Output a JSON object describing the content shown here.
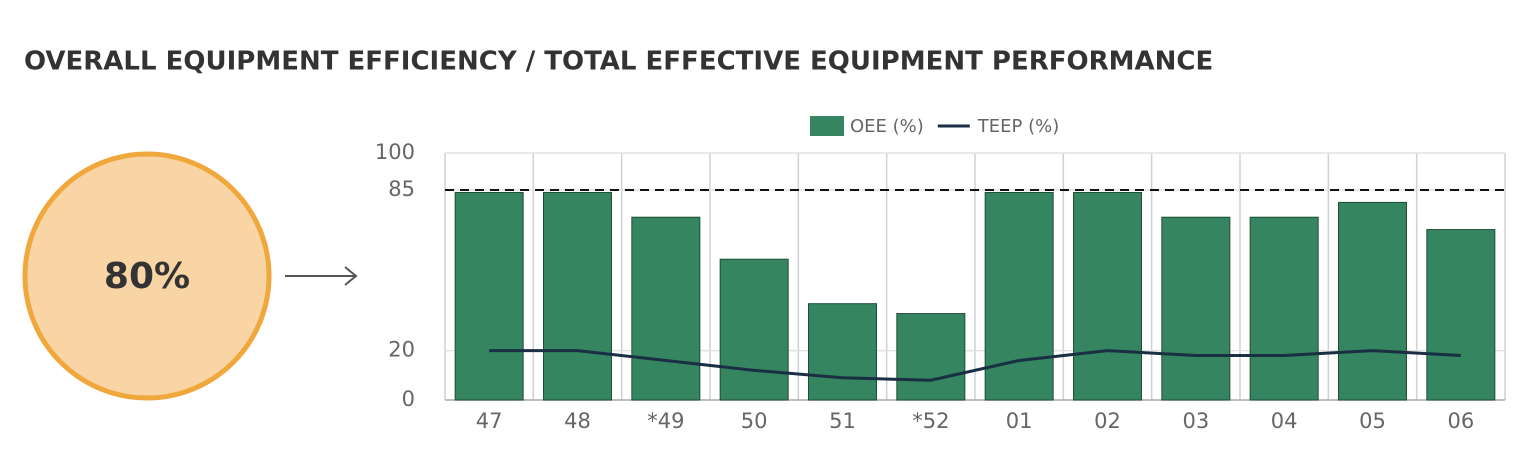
{
  "title": "OVERALL EQUIPMENT EFFICIENCY / TOTAL EFFECTIVE EQUIPMENT PERFORMANCE",
  "kpi": "80%",
  "chart_data": {
    "type": "bar",
    "categories": [
      "47",
      "48",
      "*49",
      "50",
      "51",
      "*52",
      "01",
      "02",
      "03",
      "04",
      "05",
      "06"
    ],
    "series": [
      {
        "name": "OEE (%)",
        "type": "bar",
        "color": "#358560",
        "values": [
          84,
          84,
          74,
          57,
          39,
          35,
          84,
          84,
          74,
          74,
          80,
          69
        ]
      },
      {
        "name": "TEEP (%)",
        "type": "line",
        "color": "#1a2e44",
        "values": [
          20,
          20,
          16,
          12,
          9,
          8,
          16,
          20,
          18,
          18,
          20,
          18
        ]
      }
    ],
    "ylim": [
      0,
      100
    ],
    "yticks": [
      0,
      20,
      85,
      100
    ],
    "reference_line": 85,
    "grid": true
  }
}
